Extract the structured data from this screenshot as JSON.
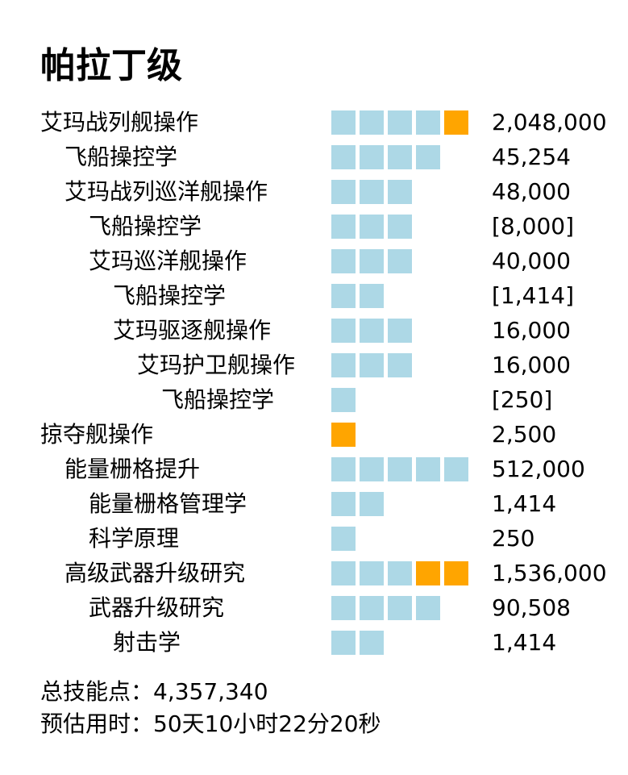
{
  "title": "帕拉丁级",
  "colors": {
    "trained": "#add8e6",
    "required": "#ffa500"
  },
  "skills": [
    {
      "name": "艾玛战列舰操作",
      "indent": 0,
      "boxes": [
        "blue",
        "blue",
        "blue",
        "blue",
        "orange"
      ],
      "sp": "2,048,000"
    },
    {
      "name": "飞船操控学",
      "indent": 1,
      "boxes": [
        "blue",
        "blue",
        "blue",
        "blue"
      ],
      "sp": "45,254"
    },
    {
      "name": "艾玛战列巡洋舰操作",
      "indent": 1,
      "boxes": [
        "blue",
        "blue",
        "blue"
      ],
      "sp": "48,000"
    },
    {
      "name": "飞船操控学",
      "indent": 2,
      "boxes": [
        "blue",
        "blue",
        "blue"
      ],
      "sp": "[8,000]"
    },
    {
      "name": "艾玛巡洋舰操作",
      "indent": 2,
      "boxes": [
        "blue",
        "blue",
        "blue"
      ],
      "sp": "40,000"
    },
    {
      "name": "飞船操控学",
      "indent": 3,
      "boxes": [
        "blue",
        "blue"
      ],
      "sp": "[1,414]"
    },
    {
      "name": "艾玛驱逐舰操作",
      "indent": 3,
      "boxes": [
        "blue",
        "blue",
        "blue"
      ],
      "sp": "16,000"
    },
    {
      "name": "艾玛护卫舰操作",
      "indent": 4,
      "boxes": [
        "blue",
        "blue",
        "blue"
      ],
      "sp": "16,000"
    },
    {
      "name": "飞船操控学",
      "indent": 5,
      "boxes": [
        "blue"
      ],
      "sp": "[250]"
    },
    {
      "name": "掠夺舰操作",
      "indent": 0,
      "boxes": [
        "orange"
      ],
      "sp": "2,500"
    },
    {
      "name": "能量栅格提升",
      "indent": 1,
      "boxes": [
        "blue",
        "blue",
        "blue",
        "blue",
        "blue"
      ],
      "sp": "512,000"
    },
    {
      "name": "能量栅格管理学",
      "indent": 2,
      "boxes": [
        "blue",
        "blue"
      ],
      "sp": "1,414"
    },
    {
      "name": "科学原理",
      "indent": 2,
      "boxes": [
        "blue"
      ],
      "sp": "250"
    },
    {
      "name": "高级武器升级研究",
      "indent": 1,
      "boxes": [
        "blue",
        "blue",
        "blue",
        "orange",
        "orange"
      ],
      "sp": "1,536,000"
    },
    {
      "name": "武器升级研究",
      "indent": 2,
      "boxes": [
        "blue",
        "blue",
        "blue",
        "blue"
      ],
      "sp": "90,508"
    },
    {
      "name": "射击学",
      "indent": 3,
      "boxes": [
        "blue",
        "blue"
      ],
      "sp": "1,414"
    }
  ],
  "summary": {
    "total_sp": "总技能点：4,357,340",
    "eta": "预估用时：50天10小时22分20秒"
  }
}
